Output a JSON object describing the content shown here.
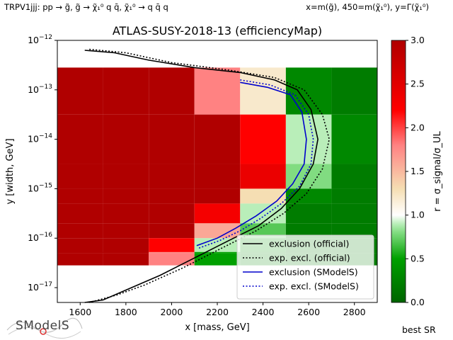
{
  "header": {
    "left_note": "TRPV1jjj: pp → g̃, g̃ → χ̃₁⁰ q q̄, χ̃₁⁰ → q q̄ q",
    "right_note": "x=m(g̃), 450=m(χ̃₁⁰), y=Γ(χ̃₁⁰)"
  },
  "footer": {
    "logo_text": "SModelS",
    "best_sr": "best SR"
  },
  "chart_data": {
    "type": "heatmap",
    "title": "ATLAS-SUSY-2018-13 (efficiencyMap)",
    "xlabel": "x [mass, GeV]",
    "ylabel": "y [width, GeV]",
    "xlim": [
      1500,
      2900
    ],
    "ylim_log10": [
      -17.3,
      -12
    ],
    "y_scale": "log",
    "x_ticks": [
      1600,
      1800,
      2000,
      2200,
      2400,
      2600,
      2800
    ],
    "y_ticks": [
      "10^-17",
      "10^-16",
      "10^-15",
      "10^-14",
      "10^-13",
      "10^-12"
    ],
    "colorbar": {
      "label": "r = σ_signal/σ_UL",
      "range": [
        0,
        3
      ],
      "ticks": [
        "0.0",
        "0.5",
        "1.0",
        "1.5",
        "2.0",
        "2.5",
        "3.0"
      ],
      "colors": [
        "#006400",
        "#00a000",
        "#8be08b",
        "#ffffff",
        "#f5deb3",
        "#ff8080",
        "#ff0000",
        "#b00000"
      ]
    },
    "grid": {
      "x_edges": [
        1500,
        1700,
        1900,
        2100,
        2300,
        2500,
        2700,
        2900
      ],
      "y_rows": [
        {
          "y0": -13.5,
          "y1": -12.55,
          "values": [
            3,
            3,
            3,
            1.8,
            1.2,
            0.3,
            0.2
          ]
        },
        {
          "y0": -14.5,
          "y1": -13.5,
          "values": [
            3,
            3,
            3,
            3,
            2.2,
            0.9,
            0.3
          ]
        },
        {
          "y0": -15.0,
          "y1": -14.5,
          "values": [
            3,
            3,
            3,
            3,
            2.4,
            0.8,
            0.2
          ]
        },
        {
          "y0": -15.3,
          "y1": -15.0,
          "values": [
            3,
            3,
            3,
            3,
            1.3,
            0.3,
            0.2
          ]
        },
        {
          "y0": -15.7,
          "y1": -15.3,
          "values": [
            3,
            3,
            3,
            2.3,
            0.9,
            0.2,
            0.2
          ]
        },
        {
          "y0": -16.0,
          "y1": -15.7,
          "values": [
            3,
            3,
            3,
            1.6,
            0.7,
            0.2,
            0.2
          ]
        },
        {
          "y0": -16.3,
          "y1": -16.0,
          "values": [
            3,
            3,
            2.2,
            0.9,
            0.4,
            0.2,
            0.2
          ]
        },
        {
          "y0": -16.3,
          "y1": -16.28,
          "values": [
            3,
            3,
            1.7,
            0.5,
            0.3,
            0.2,
            0.2
          ]
        }
      ],
      "bottom_row": {
        "y0": -16.55,
        "y1": -16.3,
        "values": [
          3,
          3,
          1.8,
          0.5,
          0.3,
          0.2,
          0.2
        ]
      }
    },
    "series": [
      {
        "name": "exclusion (official)",
        "color": "#000000",
        "style": "solid",
        "points": [
          [
            1620,
            -12.2
          ],
          [
            1750,
            -12.25
          ],
          [
            1900,
            -12.4
          ],
          [
            2100,
            -12.55
          ],
          [
            2300,
            -12.65
          ],
          [
            2450,
            -12.8
          ],
          [
            2550,
            -13.0
          ],
          [
            2610,
            -13.4
          ],
          [
            2640,
            -14.0
          ],
          [
            2620,
            -14.5
          ],
          [
            2560,
            -15.0
          ],
          [
            2480,
            -15.4
          ],
          [
            2380,
            -15.75
          ],
          [
            2250,
            -16.05
          ],
          [
            2100,
            -16.4
          ],
          [
            1950,
            -16.75
          ],
          [
            1800,
            -17.05
          ],
          [
            1700,
            -17.25
          ],
          [
            1620,
            -17.3
          ]
        ]
      },
      {
        "name": "exp. excl. (official)",
        "color": "#000000",
        "style": "dotted",
        "points": [
          [
            1640,
            -12.18
          ],
          [
            1800,
            -12.25
          ],
          [
            2000,
            -12.45
          ],
          [
            2250,
            -12.6
          ],
          [
            2450,
            -12.75
          ],
          [
            2580,
            -13.0
          ],
          [
            2660,
            -13.5
          ],
          [
            2690,
            -14.0
          ],
          [
            2660,
            -14.6
          ],
          [
            2590,
            -15.1
          ],
          [
            2490,
            -15.5
          ],
          [
            2370,
            -15.85
          ],
          [
            2220,
            -16.2
          ],
          [
            2050,
            -16.6
          ],
          [
            1880,
            -16.95
          ],
          [
            1760,
            -17.15
          ],
          [
            1640,
            -17.3
          ]
        ]
      },
      {
        "name": "exclusion (SModelS)",
        "color": "#0000cc",
        "style": "solid",
        "points": [
          [
            2300,
            -12.85
          ],
          [
            2420,
            -12.95
          ],
          [
            2520,
            -13.1
          ],
          [
            2570,
            -13.45
          ],
          [
            2590,
            -14.0
          ],
          [
            2580,
            -14.5
          ],
          [
            2530,
            -14.9
          ],
          [
            2460,
            -15.25
          ],
          [
            2370,
            -15.55
          ],
          [
            2280,
            -15.8
          ],
          [
            2200,
            -16.0
          ],
          [
            2110,
            -16.15
          ]
        ]
      },
      {
        "name": "exp. excl. (SModelS)",
        "color": "#0000cc",
        "style": "dotted",
        "points": [
          [
            2300,
            -12.8
          ],
          [
            2430,
            -12.9
          ],
          [
            2540,
            -13.1
          ],
          [
            2600,
            -13.5
          ],
          [
            2620,
            -14.0
          ],
          [
            2610,
            -14.5
          ],
          [
            2560,
            -14.95
          ],
          [
            2480,
            -15.3
          ],
          [
            2390,
            -15.6
          ],
          [
            2300,
            -15.85
          ],
          [
            2210,
            -16.05
          ],
          [
            2120,
            -16.2
          ]
        ]
      }
    ],
    "legend": {
      "placement": "bottom-right",
      "entries": [
        {
          "label": "exclusion (official)",
          "color": "#000000",
          "style": "solid"
        },
        {
          "label": "exp. excl. (official)",
          "color": "#000000",
          "style": "dotted"
        },
        {
          "label": "exclusion (SModelS)",
          "color": "#0000cc",
          "style": "solid"
        },
        {
          "label": "exp. excl. (SModelS)",
          "color": "#0000cc",
          "style": "dotted"
        }
      ]
    }
  }
}
